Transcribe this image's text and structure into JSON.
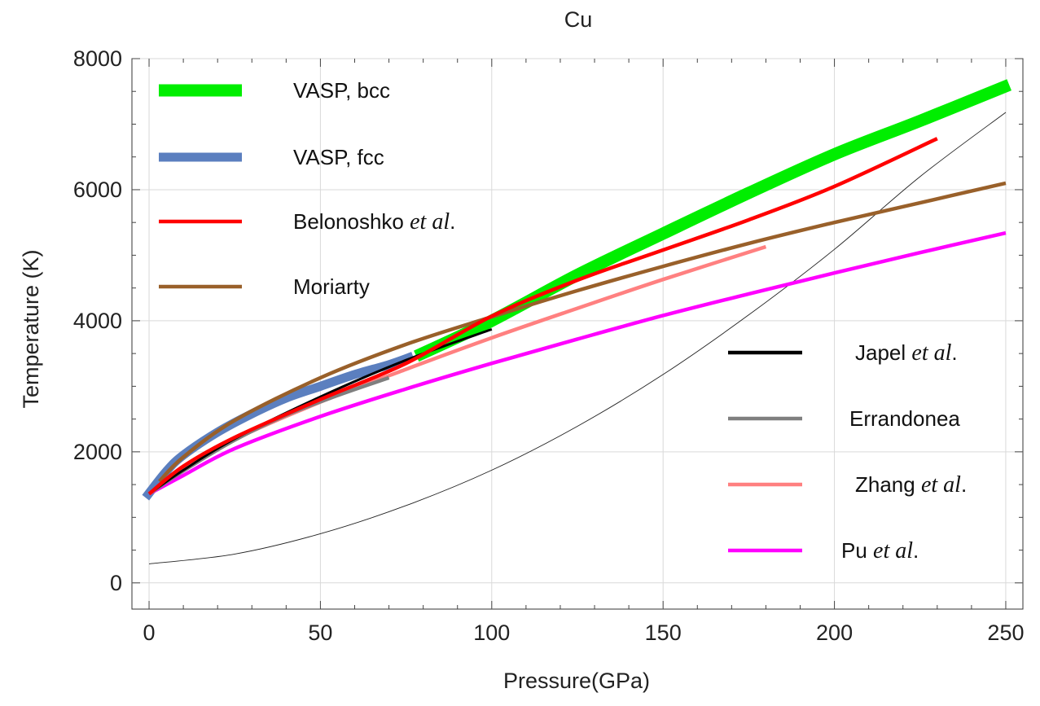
{
  "chart_data": {
    "type": "line",
    "title": "Cu",
    "xlabel": "Pressure(GPa)",
    "ylabel": "Temperature (K)",
    "xlim": [
      -5,
      255
    ],
    "ylim": [
      -400,
      8000
    ],
    "xticks": [
      0,
      50,
      100,
      150,
      200,
      250
    ],
    "yticks": [
      0,
      2000,
      4000,
      6000,
      8000
    ],
    "xtick_labels": [
      "0",
      "50",
      "100",
      "150",
      "200",
      "250"
    ],
    "ytick_labels": [
      "0",
      "2000",
      "4000",
      "6000",
      "8000"
    ],
    "grid": true,
    "legend_placement": "top-left and lower-right",
    "series": [
      {
        "name": "VASP, fcc",
        "label_main": "VASP, fcc",
        "label_italic": "",
        "label_suffix": "",
        "color": "#5b7fbf",
        "style": "thick",
        "x": [
          -1,
          5,
          10,
          20,
          30,
          40,
          50,
          60,
          70,
          77
        ],
        "y": [
          1300,
          1700,
          1950,
          2300,
          2580,
          2820,
          3000,
          3180,
          3330,
          3460
        ]
      },
      {
        "name": "VASP, bcc",
        "label_main": "VASP, bcc",
        "label_italic": "",
        "label_suffix": "",
        "color": "#00ee00",
        "style": "thickest",
        "x": [
          78,
          100,
          125,
          150,
          175,
          200,
          225,
          251
        ],
        "y": [
          3460,
          4000,
          4700,
          5330,
          5950,
          6540,
          7050,
          7600
        ]
      },
      {
        "name": "Belonoshko et al.",
        "label_main": "Belonoshko ",
        "label_italic": "et al",
        "label_suffix": ".",
        "color": "#ff0000",
        "style": "medium",
        "x": [
          0,
          10,
          25,
          50,
          75,
          100,
          125,
          150,
          175,
          200,
          230
        ],
        "y": [
          1358,
          1780,
          2220,
          2800,
          3350,
          4070,
          4620,
          5080,
          5540,
          6050,
          6780
        ]
      },
      {
        "name": "Moriarty",
        "label_main": "Moriarty",
        "label_italic": "",
        "label_suffix": "",
        "color": "#99602a",
        "style": "medium",
        "x": [
          3,
          10,
          25,
          50,
          75,
          100,
          125,
          150,
          175,
          200,
          225,
          250
        ],
        "y": [
          1550,
          1920,
          2480,
          3130,
          3640,
          4060,
          4460,
          4830,
          5180,
          5500,
          5800,
          6100
        ]
      },
      {
        "name": "Japel et al.",
        "label_main": "Japel ",
        "label_italic": "et al",
        "label_suffix": ".",
        "color": "#000000",
        "style": "thin",
        "x": [
          0,
          10,
          25,
          50,
          75,
          100
        ],
        "y": [
          1358,
          1720,
          2200,
          2840,
          3400,
          3870
        ]
      },
      {
        "name": "Errandonea",
        "label_main": "Errandonea",
        "label_italic": "",
        "label_suffix": "",
        "color": "#7f7f7f",
        "style": "medium",
        "x": [
          0,
          10,
          25,
          40,
          55,
          70
        ],
        "y": [
          1358,
          1710,
          2180,
          2560,
          2860,
          3130
        ]
      },
      {
        "name": "Zhang et al.",
        "label_main": "Zhang ",
        "label_italic": "et al",
        "label_suffix": ".",
        "color": "#ff8080",
        "style": "medium",
        "x": [
          0,
          10,
          25,
          50,
          75,
          100,
          125,
          150,
          180
        ],
        "y": [
          1358,
          1720,
          2190,
          2760,
          3260,
          3740,
          4190,
          4630,
          5130
        ]
      },
      {
        "name": "Pu et al.",
        "label_main": "Pu ",
        "label_italic": "et al",
        "label_suffix": ".",
        "color": "#ff00ff",
        "style": "medium",
        "x": [
          0,
          10,
          25,
          50,
          75,
          100,
          125,
          150,
          175,
          200,
          225,
          250
        ],
        "y": [
          1358,
          1640,
          2050,
          2540,
          2960,
          3350,
          3720,
          4080,
          4410,
          4730,
          5040,
          5340
        ]
      },
      {
        "name": "",
        "color": "#222222",
        "style": "hairline",
        "x": [
          0,
          25,
          50,
          75,
          100,
          125,
          150,
          175,
          200,
          225,
          250
        ],
        "y": [
          290,
          440,
          750,
          1180,
          1720,
          2390,
          3180,
          4090,
          5090,
          6200,
          7180
        ]
      }
    ],
    "legend_top": [
      "VASP, bcc",
      "VASP, fcc",
      "Belonoshko et al.",
      "Moriarty"
    ],
    "legend_bottom": [
      "Japel et al.",
      "Errandonea",
      "Zhang et al.",
      "Pu et al."
    ]
  }
}
